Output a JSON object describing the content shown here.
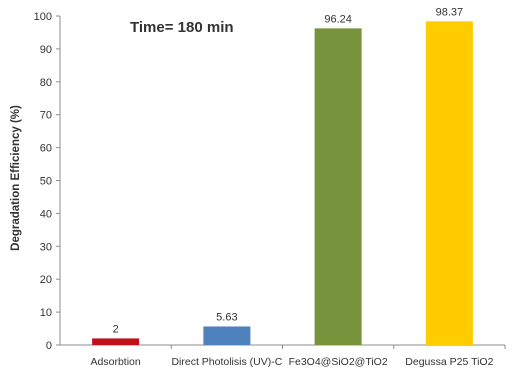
{
  "chart_data": {
    "type": "bar",
    "title": "",
    "annotation": "Time= 180 min",
    "xlabel": "",
    "ylabel": "Degradation Efficiency (%)",
    "ylim": [
      0,
      100
    ],
    "yticks": [
      "0",
      "10",
      "20",
      "30",
      "40",
      "50",
      "60",
      "70",
      "80",
      "90",
      "100"
    ],
    "grid": false,
    "categories": [
      "Adsorbtion",
      "Direct Photolisis (UV)-C",
      "Fe3O4@SiO2@TiO2",
      "Degussa P25 TiO2"
    ],
    "values": [
      2,
      5.63,
      96.24,
      98.37
    ],
    "data_labels": [
      "2",
      "5.63",
      "96.24",
      "98.37"
    ],
    "colors": [
      "#C0101A",
      "#4F81BD",
      "#77933C",
      "#FFCC00"
    ]
  }
}
